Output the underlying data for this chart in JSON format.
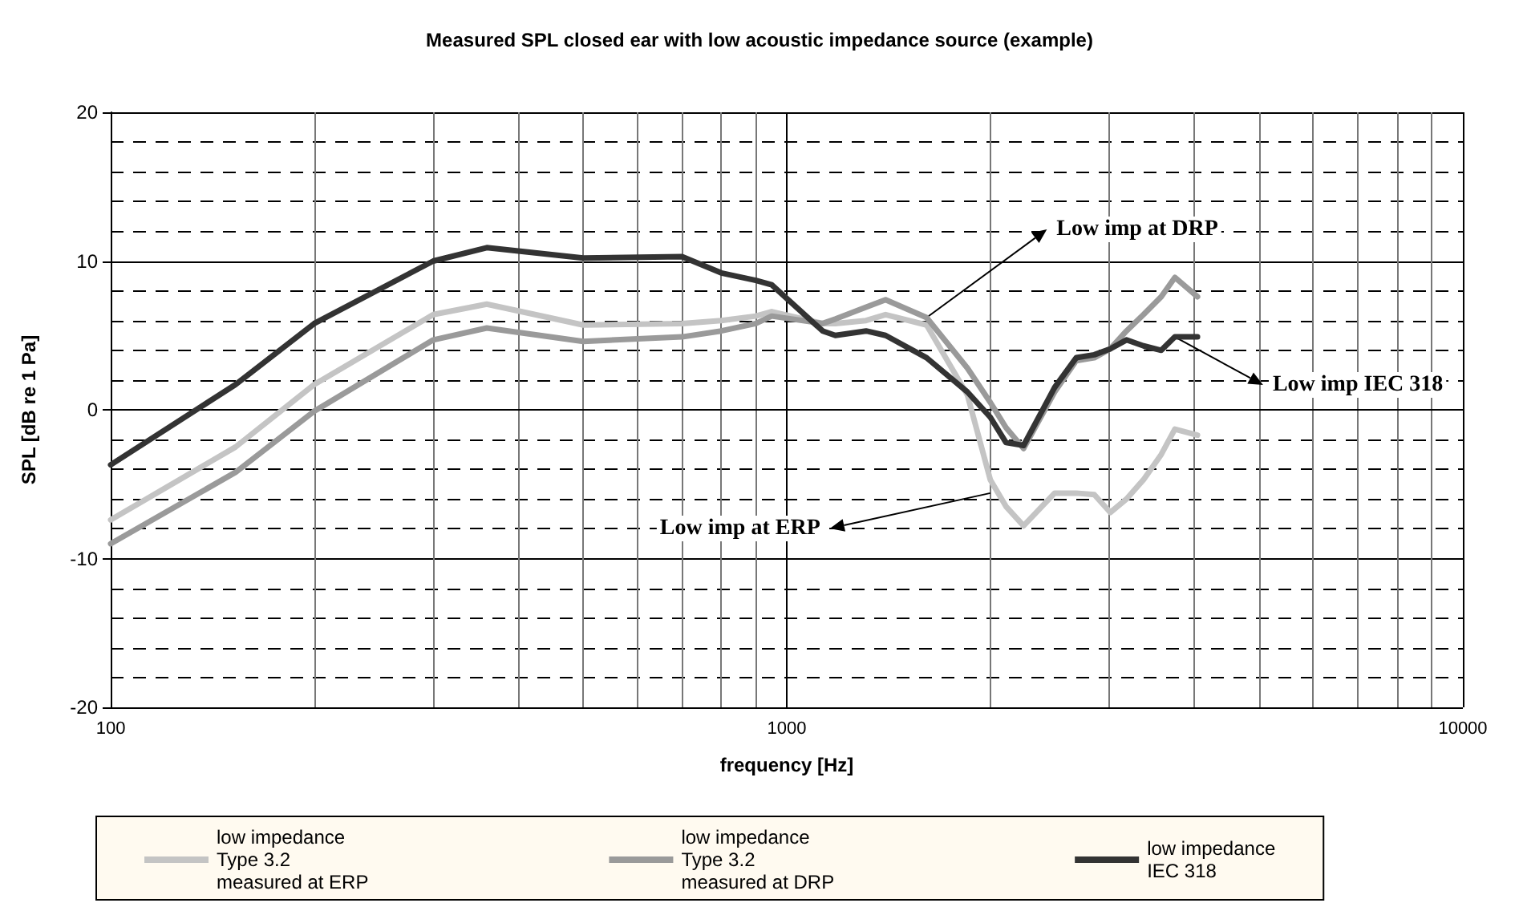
{
  "chart_data": {
    "type": "line",
    "title": "Measured SPL closed ear with low acoustic impedance source (example)",
    "xlabel": "frequency [Hz]",
    "ylabel": "SPL [dB re 1 Pa]",
    "log": "x",
    "xlim": [
      100,
      10000
    ],
    "xticks": [
      100,
      1000,
      10000
    ],
    "ylim": [
      -20,
      20
    ],
    "yticks": [
      -20,
      -10,
      0,
      10,
      20
    ],
    "grid": true,
    "legend": "bottom",
    "marker": "none",
    "x": [
      100,
      153,
      200,
      300,
      360,
      500,
      700,
      800,
      900,
      950,
      1130,
      1180,
      1310,
      1400,
      1610,
      1850,
      2000,
      2110,
      2240,
      2490,
      2680,
      2850,
      3010,
      3180,
      3370,
      3580,
      3750,
      4050
    ],
    "series": [
      {
        "name": "low impedance\nType 3.2\nmeasured at ERP",
        "color": "#c4c4c4",
        "values": [
          -7.4,
          -2.5,
          1.7,
          6.4,
          7.1,
          5.7,
          5.8,
          6.0,
          6.3,
          6.6,
          5.8,
          5.8,
          6.0,
          6.4,
          5.7,
          1.0,
          -4.7,
          -6.5,
          -7.8,
          -5.6,
          -5.6,
          -5.7,
          -6.9,
          -6.0,
          -4.7,
          -3.0,
          -1.3,
          -1.7
        ]
      },
      {
        "name": "low impedance\nType 3.2\nmeasured at DRP",
        "color": "#9a9a9a",
        "values": [
          -9.0,
          -4.2,
          -0.1,
          4.7,
          5.5,
          4.6,
          4.9,
          5.3,
          5.8,
          6.3,
          5.8,
          6.1,
          6.9,
          7.4,
          6.2,
          2.8,
          0.5,
          -1.2,
          -2.6,
          1.2,
          3.3,
          3.5,
          4.1,
          5.3,
          6.4,
          7.6,
          8.9,
          7.6
        ]
      },
      {
        "name": "low impedance\nIEC 318",
        "color": "#333333",
        "values": [
          -3.7,
          1.7,
          5.8,
          10.0,
          10.9,
          10.2,
          10.3,
          9.2,
          8.7,
          8.4,
          5.3,
          5.0,
          5.3,
          5.0,
          3.5,
          1.2,
          -0.5,
          -2.2,
          -2.4,
          1.5,
          3.5,
          3.7,
          4.1,
          4.7,
          4.3,
          4.0,
          4.9,
          4.9
        ]
      }
    ],
    "annotations": [
      {
        "text": "Low imp at DRP",
        "x": 1610,
        "y": 6.2
      },
      {
        "text": "Low imp at ERP",
        "x": 2000,
        "y": -5.6
      },
      {
        "text": "Low imp IEC 318",
        "x": 3750,
        "y": 4.9
      }
    ]
  }
}
